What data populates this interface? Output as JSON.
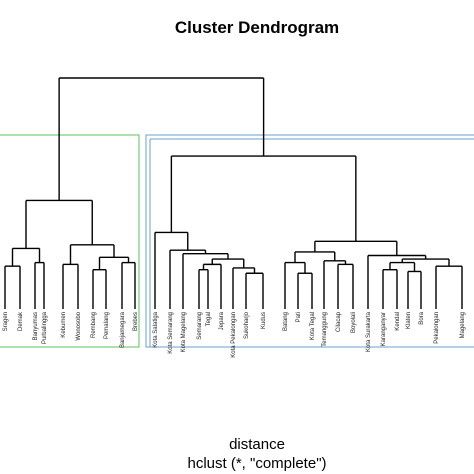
{
  "chart_data": {
    "type": "dendrogram",
    "title": "Cluster Dendrogram",
    "xlabel": "distance",
    "sublabel": "hclust (*, \"complete\")",
    "leaves": [
      "Sragen",
      "Demak",
      "Banyumas",
      "Purbalingga",
      "Kebumen",
      "Wonosobo",
      "Rembang",
      "Pemalang",
      "Banjarnegara",
      "Brebes",
      "Kota Salatiga",
      "Kota Semarang",
      "Kota Magelang",
      "Semarang",
      "Tegal",
      "Jepara",
      "Kota Pekalongan",
      "Sukoharjo",
      "Kudus",
      "Batang",
      "Pati",
      "Kota Tegal",
      "Temanggung",
      "Cilacap",
      "Boyolali",
      "Kota Surakarta",
      "Karanganyar",
      "Kendal",
      "Klaten",
      "Bora",
      "Pekalongan",
      "Magelang"
    ],
    "clusters": [
      {
        "color": "#5cc25c",
        "leaves": [
          "Sragen",
          "Demak",
          "Banyumas",
          "Purbalingga",
          "Kebumen",
          "Wonosobo",
          "Rembang",
          "Pemalang",
          "Banjarnegara",
          "Brebes"
        ]
      },
      {
        "color": "#6a9fd6",
        "leaves": [
          "Kota Salatiga",
          "Kota Semarang",
          "Kota Magelang",
          "Semarang",
          "Tegal",
          "Jepara",
          "Kota Pekalongan",
          "Sukoharjo",
          "Kudus",
          "Batang",
          "Pati",
          "Kota Tegal",
          "Temanggung",
          "Cilacap",
          "Boyolali",
          "Kota Surakarta",
          "Karanganyar",
          "Kendal",
          "Klaten",
          "Bora",
          "Pekalongan",
          "Magelang"
        ]
      }
    ],
    "merges": [
      {
        "a": "Sragen",
        "b": "Demak",
        "height": 1.4
      },
      {
        "a": "Banyumas",
        "b": "Purbalingga",
        "height": 1.6
      },
      {
        "a": "m1",
        "b": "m2",
        "height": 2.4
      },
      {
        "a": "Kebumen",
        "b": "Wonosobo",
        "height": 1.5
      },
      {
        "a": "Rembang",
        "b": "Pemalang",
        "height": 1.2
      },
      {
        "a": "Banjarnegara",
        "b": "Brebes",
        "height": 1.6
      },
      {
        "a": "m5",
        "b": "m6",
        "height": 1.9
      },
      {
        "a": "m4",
        "b": "m7",
        "height": 2.6
      },
      {
        "a": "m3",
        "b": "m8",
        "height": 5.1
      },
      {
        "a": "Semarang",
        "b": "Tegal",
        "height": 1.2
      },
      {
        "a": "m10",
        "b": "Jepara",
        "height": 1.5
      },
      {
        "a": "Sukoharjo",
        "b": "Kudus",
        "height": 1.0
      },
      {
        "a": "Kota Pekalongan",
        "b": "m12",
        "height": 1.3
      },
      {
        "a": "m11",
        "b": "m13",
        "height": 1.8
      },
      {
        "a": "Kota Magelang",
        "b": "m14",
        "height": 2.1
      },
      {
        "a": "Kota Semarang",
        "b": "m15",
        "height": 2.3
      },
      {
        "a": "Kota Salatiga",
        "b": "m16",
        "height": 3.3
      },
      {
        "a": "Pati",
        "b": "Kota Tegal",
        "height": 1.0
      },
      {
        "a": "Batang",
        "b": "m18",
        "height": 1.6
      },
      {
        "a": "Cilacap",
        "b": "Boyolali",
        "height": 1.5
      },
      {
        "a": "Temanggung",
        "b": "m20",
        "height": 1.7
      },
      {
        "a": "m19",
        "b": "m21",
        "height": 2.2
      },
      {
        "a": "Karanganyar",
        "b": "Kendal",
        "height": 1.2
      },
      {
        "a": "Klaten",
        "b": "Bora",
        "height": 1.1
      },
      {
        "a": "m23",
        "b": "m24",
        "height": 1.6
      },
      {
        "a": "Pekalongan",
        "b": "Magelang",
        "height": 1.4
      },
      {
        "a": "m25",
        "b": "m26",
        "height": 1.8
      },
      {
        "a": "Kota Surakarta",
        "b": "m27",
        "height": 2.0
      },
      {
        "a": "m22",
        "b": "m28",
        "height": 2.8
      },
      {
        "a": "m17",
        "b": "m29",
        "height": 7.6
      },
      {
        "a": "m9",
        "b": "m30",
        "height": 12.0
      }
    ]
  }
}
